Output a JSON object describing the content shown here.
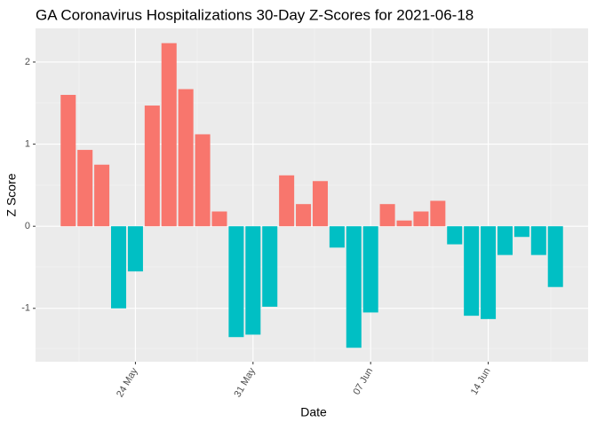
{
  "chart_data": {
    "type": "bar",
    "title": "GA Coronavirus Hospitalizations 30-Day Z-Scores for 2021-06-18",
    "x_label": "Date",
    "y_label": "Z Score",
    "categories": [
      null,
      null,
      null,
      null,
      "24 May",
      null,
      null,
      null,
      null,
      null,
      null,
      "31 May",
      null,
      null,
      null,
      null,
      null,
      null,
      "07 Jun",
      null,
      null,
      null,
      null,
      null,
      null,
      "14 Jun",
      null,
      null,
      null,
      null
    ],
    "values": [
      1.6,
      0.93,
      0.75,
      -1.0,
      -0.55,
      1.47,
      2.23,
      1.67,
      1.12,
      0.18,
      -1.35,
      -1.32,
      -0.98,
      0.62,
      0.27,
      0.55,
      -0.26,
      -1.48,
      -1.05,
      0.27,
      0.07,
      0.18,
      0.31,
      -0.22,
      -1.09,
      -1.13,
      -0.35,
      -0.13,
      -0.35,
      -0.74
    ],
    "colors": [
      "#F8766D",
      "#00BFC4"
    ],
    "ylim": [
      -1.65,
      2.41
    ],
    "yticks": [
      -1,
      0,
      1,
      2
    ],
    "grid": true
  }
}
